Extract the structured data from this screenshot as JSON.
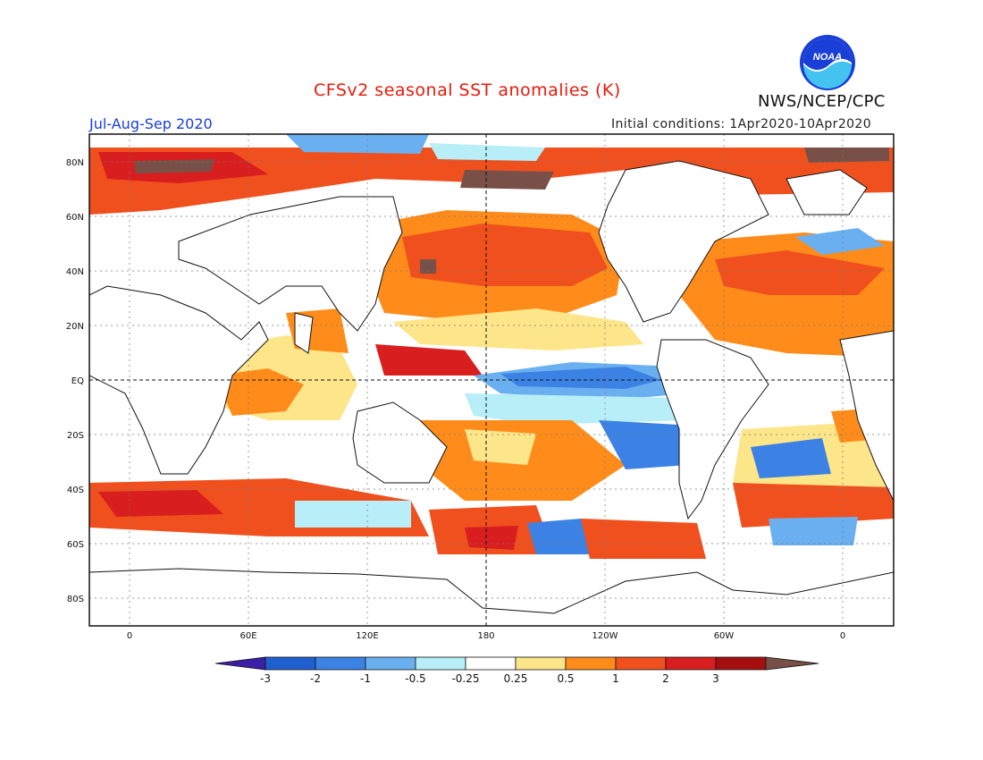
{
  "header": {
    "title": "CFSv2 seasonal SST anomalies (K)",
    "period": "Jul-Aug-Sep 2020",
    "initial_conditions": "Initial conditions: 1Apr2020-10Apr2020",
    "organization": "NWS/NCEP/CPC",
    "logo_icon": "noaa-logo-icon",
    "logo_text": "NOAA"
  },
  "map": {
    "lat_labels": [
      "80N",
      "60N",
      "40N",
      "20N",
      "EQ",
      "20S",
      "40S",
      "60S",
      "80S"
    ],
    "lon_labels": [
      "0",
      "60E",
      "120E",
      "180",
      "120W",
      "60W",
      "0"
    ]
  },
  "colorbar": {
    "labels": [
      "-3",
      "-2",
      "-1",
      "-0.5",
      "-0.25",
      "0.25",
      "0.5",
      "1",
      "2",
      "3"
    ],
    "colors": [
      "#3b1fa6",
      "#1f5fd0",
      "#3c82e4",
      "#6ab0f0",
      "#b8eef7",
      "#ffffff",
      "#fde58a",
      "#ff8c1a",
      "#f0501e",
      "#d81e1e",
      "#a50f0f",
      "#785048"
    ]
  }
}
